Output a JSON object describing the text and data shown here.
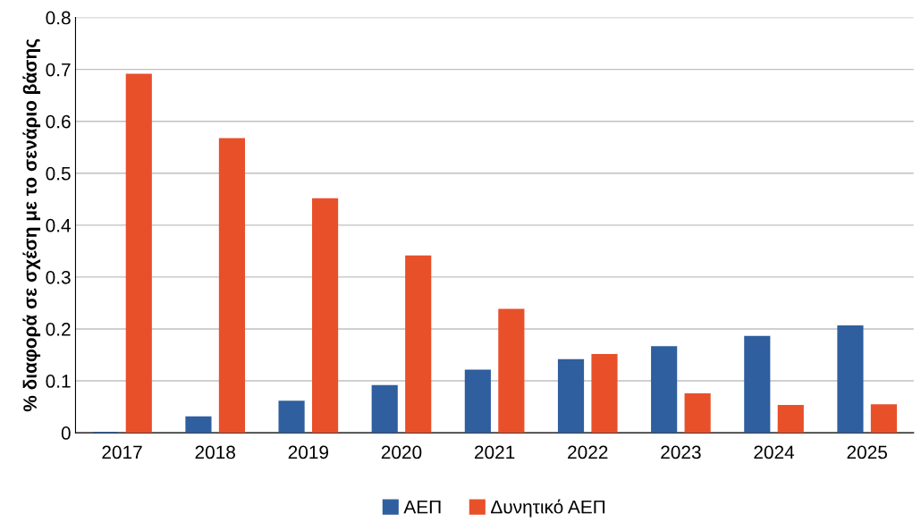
{
  "chart_data": {
    "type": "bar",
    "ylabel": "% διαφορά σε σχέση με το σενάριο βάσης",
    "categories": [
      "2017",
      "2018",
      "2019",
      "2020",
      "2021",
      "2022",
      "2023",
      "2024",
      "2025"
    ],
    "series": [
      {
        "name": "ΑΕΠ",
        "color": "#2f5f9e",
        "values": [
          0,
          0.03,
          0.06,
          0.09,
          0.12,
          0.14,
          0.165,
          0.185,
          0.205
        ]
      },
      {
        "name": "Δυνητικό ΑΕΠ",
        "color": "#e8502a",
        "values": [
          0.69,
          0.566,
          0.45,
          0.34,
          0.237,
          0.15,
          0.074,
          0.052,
          0.053
        ]
      }
    ],
    "ylim": [
      0,
      0.8
    ],
    "yticks": [
      0,
      0.1,
      0.2,
      0.3,
      0.4,
      0.5,
      0.6,
      0.7,
      0.8
    ],
    "grid": "y",
    "legend": "bottom"
  }
}
